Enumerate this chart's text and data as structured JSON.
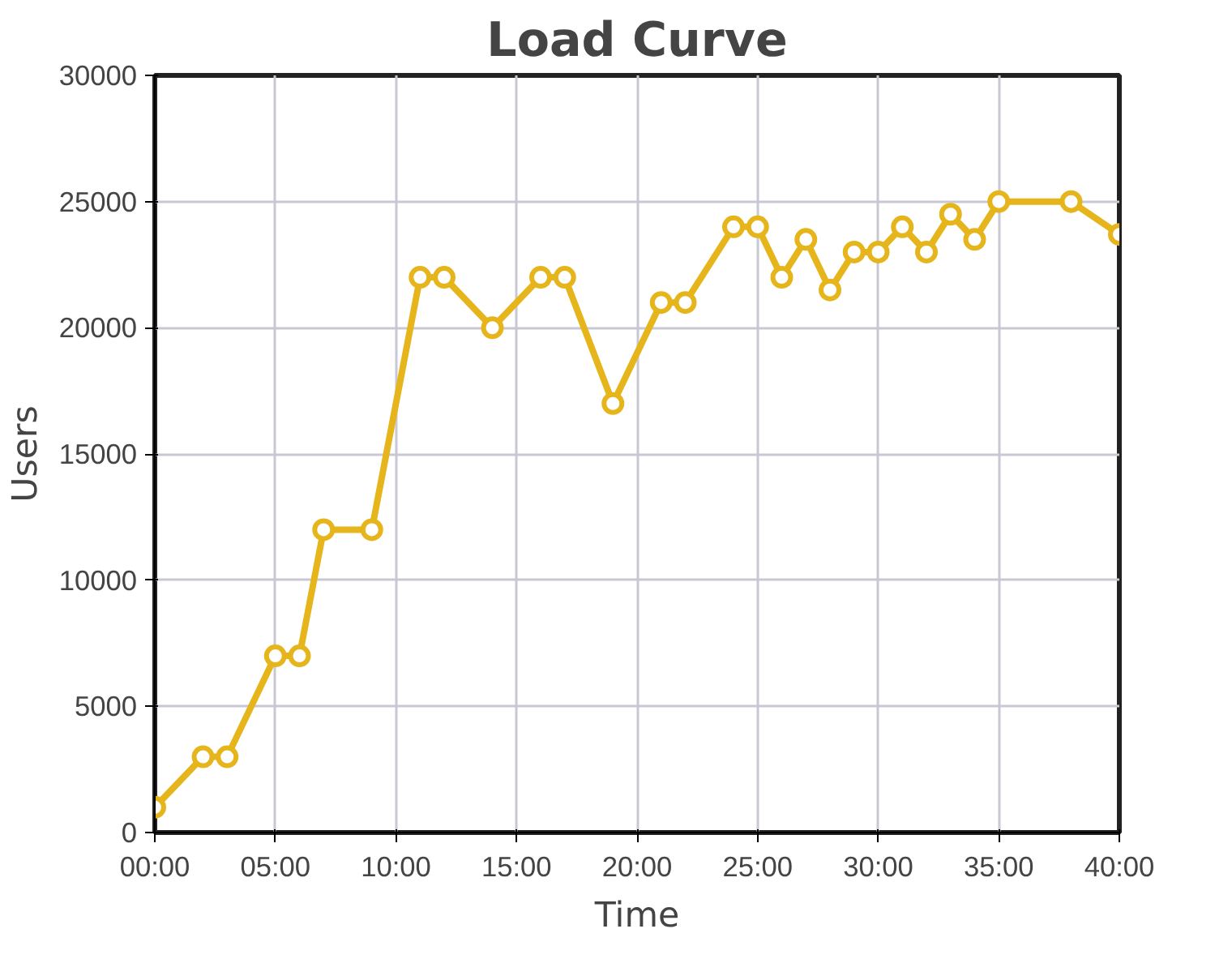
{
  "chart_data": {
    "type": "line",
    "title": "Load Curve",
    "xlabel": "Time",
    "ylabel": "Users",
    "x": [
      0,
      2,
      3,
      5,
      6,
      7,
      9,
      11,
      12,
      14,
      16,
      17,
      19,
      21,
      22,
      24,
      25,
      26,
      27,
      28,
      29,
      30,
      31,
      32,
      33,
      34,
      35,
      38,
      40
    ],
    "series": [
      {
        "color": "#e5b51b",
        "values": [
          1000,
          3000,
          3000,
          7000,
          7000,
          12000,
          12000,
          22000,
          22000,
          20000,
          22000,
          22000,
          17000,
          21000,
          21000,
          24000,
          24000,
          22000,
          23500,
          21500,
          23000,
          23000,
          24000,
          23000,
          24500,
          23500,
          25000,
          25000,
          23700
        ]
      }
    ],
    "xlim": [
      0,
      40
    ],
    "ylim": [
      0,
      30000
    ],
    "xticks": [
      {
        "value": 0,
        "label": "00:00"
      },
      {
        "value": 5,
        "label": "05:00"
      },
      {
        "value": 10,
        "label": "10:00"
      },
      {
        "value": 15,
        "label": "15:00"
      },
      {
        "value": 20,
        "label": "20:00"
      },
      {
        "value": 25,
        "label": "25:00"
      },
      {
        "value": 30,
        "label": "30:00"
      },
      {
        "value": 35,
        "label": "35:00"
      },
      {
        "value": 40,
        "label": "40:00"
      }
    ],
    "yticks": [
      0,
      5000,
      10000,
      15000,
      20000,
      25000,
      30000
    ],
    "grid": true,
    "marker": "circle",
    "line_style": "solid"
  }
}
